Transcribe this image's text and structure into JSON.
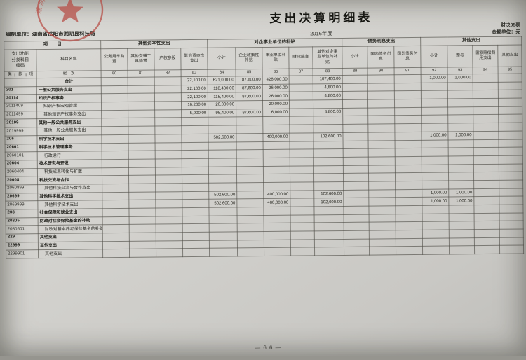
{
  "page": {
    "title": "支出决算明细表",
    "year": "2016年度",
    "prepared_by": "编制单位：湖南省岳阳市湘阴县科技局",
    "form_no": "财决05表",
    "unit_note": "金额单位：元",
    "page_no": "— 6.6 —"
  },
  "seal": {
    "arc_text": "湘阴县科学技术局",
    "color": "#b5443c"
  },
  "table": {
    "header": {
      "item_label": "项　　目",
      "code_label": "支出功能分类科目编码",
      "subject_label": "科目名称",
      "code_sub": [
        "类",
        "款",
        "项"
      ],
      "lanci_label": "栏　次",
      "total_label": "合　计",
      "groups": [
        {
          "label": "其他资本性支出",
          "span": 4
        },
        {
          "label": "对企事业单位的补贴",
          "span": 5
        },
        {
          "label": "债务利息支出",
          "span": 3
        },
        {
          "label": "其他支出",
          "span": 4
        }
      ],
      "columns": [
        {
          "no": "80",
          "label": "公务用车购置"
        },
        {
          "no": "81",
          "label": "其他交通工具购置"
        },
        {
          "no": "82",
          "label": "产权参股"
        },
        {
          "no": "83",
          "label": "其他资本性支出"
        },
        {
          "no": "84",
          "label": "小计"
        },
        {
          "no": "85",
          "label": "企业政策性补贴"
        },
        {
          "no": "86",
          "label": "事业单位补贴"
        },
        {
          "no": "87",
          "label": "财政贴息"
        },
        {
          "no": "88",
          "label": "其他对企事业单位的补贴"
        },
        {
          "no": "89",
          "label": "小计"
        },
        {
          "no": "90",
          "label": "国内债务付息"
        },
        {
          "no": "91",
          "label": "国外债务付息"
        },
        {
          "no": "92",
          "label": "小计"
        },
        {
          "no": "93",
          "label": "赠与"
        },
        {
          "no": "94",
          "label": "国家赔偿费用支出"
        },
        {
          "no": "95",
          "label": "其他支出"
        }
      ]
    },
    "rows": [
      {
        "code": "",
        "name": "合计",
        "level": "total",
        "values": {
          "83": "22,100.00",
          "84": "621,000.00",
          "85": "87,600.00",
          "86": "426,000.00",
          "88": "107,400.00",
          "92": "1,000.00",
          "93": "1,000.00"
        }
      },
      {
        "code": "201",
        "name": "一般公共服务支出",
        "level": "class",
        "values": {
          "83": "22,100.00",
          "84": "118,400.00",
          "85": "87,600.00",
          "86": "26,000.00",
          "88": "4,800.00"
        }
      },
      {
        "code": "20114",
        "name": "知识产权事务",
        "level": "sub",
        "values": {
          "83": "22,100.00",
          "84": "118,400.00",
          "85": "87,600.00",
          "86": "26,000.00",
          "88": "4,800.00"
        }
      },
      {
        "code": "2011409",
        "name": "知识产权宏观管理",
        "level": "item",
        "values": {
          "83": "16,200.00",
          "84": "20,000.00",
          "86": "20,000.00"
        }
      },
      {
        "code": "2011499",
        "name": "其他知识产权事务支出",
        "level": "item",
        "values": {
          "83": "5,900.00",
          "84": "98,400.00",
          "85": "87,600.00",
          "86": "6,000.00",
          "88": "4,800.00"
        }
      },
      {
        "code": "20199",
        "name": "其他一般公共服务支出",
        "level": "sub",
        "values": {}
      },
      {
        "code": "2019999",
        "name": "其他一般公共服务支出",
        "level": "item",
        "values": {}
      },
      {
        "code": "206",
        "name": "科学技术支出",
        "level": "class",
        "values": {
          "84": "502,600.00",
          "86": "400,000.00",
          "88": "102,600.00",
          "92": "1,000.00",
          "93": "1,000.00"
        }
      },
      {
        "code": "20601",
        "name": "科学技术管理事务",
        "level": "sub",
        "values": {}
      },
      {
        "code": "2060101",
        "name": "行政运行",
        "level": "item",
        "values": {}
      },
      {
        "code": "20604",
        "name": "技术研究与开发",
        "level": "sub",
        "values": {}
      },
      {
        "code": "2060404",
        "name": "科技成果转化与扩散",
        "level": "item",
        "values": {}
      },
      {
        "code": "20608",
        "name": "科技交流与合作",
        "level": "sub",
        "values": {}
      },
      {
        "code": "2060899",
        "name": "其他科技交流与合作支出",
        "level": "item",
        "values": {}
      },
      {
        "code": "20699",
        "name": "其他科学技术支出",
        "level": "sub",
        "values": {
          "84": "502,600.00",
          "86": "400,000.00",
          "88": "102,600.00",
          "92": "1,000.00",
          "93": "1,000.00"
        }
      },
      {
        "code": "2069999",
        "name": "其他科学技术支出",
        "level": "item",
        "values": {
          "84": "502,600.00",
          "86": "400,000.00",
          "88": "102,600.00",
          "92": "1,000.00",
          "93": "1,000.00"
        }
      },
      {
        "code": "208",
        "name": "社会保障和就业支出",
        "level": "class",
        "values": {}
      },
      {
        "code": "20805",
        "name": "财政对社会保险基金的补助",
        "level": "sub",
        "values": {}
      },
      {
        "code": "2080501",
        "name": "财政对基本养老保险基金的补助",
        "level": "item",
        "values": {}
      },
      {
        "code": "229",
        "name": "其他支出",
        "level": "class",
        "values": {}
      },
      {
        "code": "22999",
        "name": "其他支出",
        "level": "sub",
        "values": {}
      },
      {
        "code": "2299901",
        "name": "其他支出",
        "level": "item",
        "values": {}
      }
    ]
  }
}
